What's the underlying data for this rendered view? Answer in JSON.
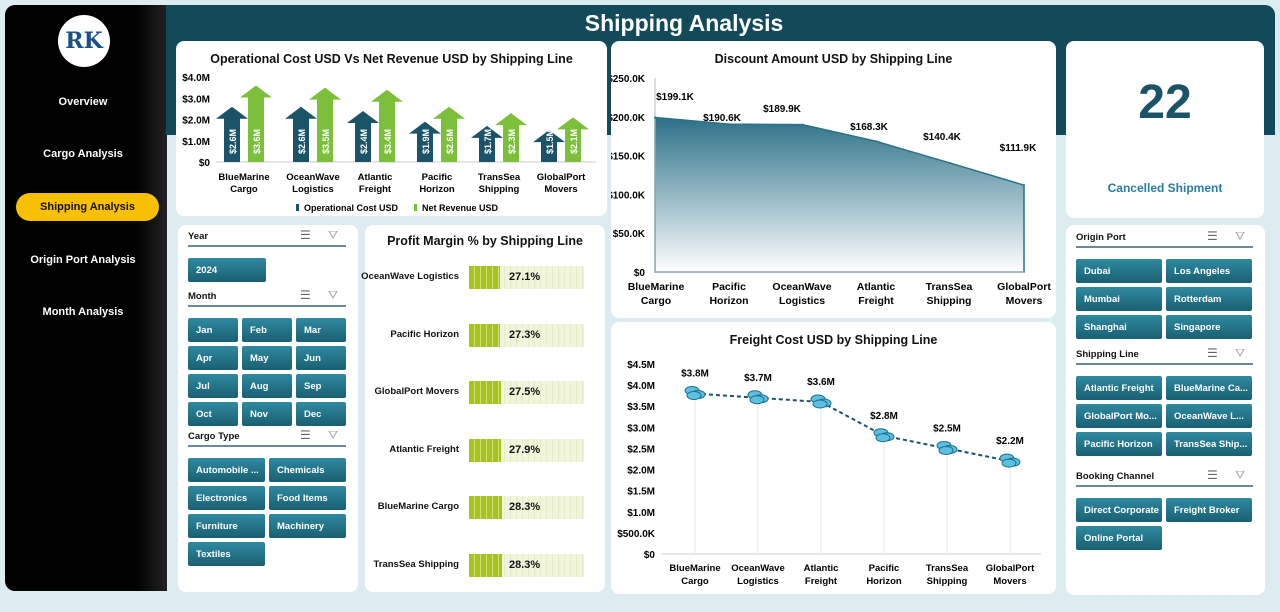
{
  "header": {
    "title": "Shipping Analysis"
  },
  "sidebar": {
    "logo": "RK",
    "items": [
      {
        "label": "Overview"
      },
      {
        "label": "Cargo Analysis"
      },
      {
        "label": "Shipping Analysis"
      },
      {
        "label": "Origin Port  Analysis"
      },
      {
        "label": "Month Analysis"
      }
    ],
    "active": 2
  },
  "kpi": {
    "value": "22",
    "label": "Cancelled Shipment"
  },
  "slicers_left": [
    {
      "title": "Year",
      "items": [
        "2024"
      ]
    },
    {
      "title": "Month",
      "items": [
        "Jan",
        "Feb",
        "Mar",
        "Apr",
        "May",
        "Jun",
        "Jul",
        "Aug",
        "Sep",
        "Oct",
        "Nov",
        "Dec"
      ]
    },
    {
      "title": "Cargo Type",
      "items": [
        "Automobile ...",
        "Chemicals",
        "Electronics",
        "Food Items",
        "Furniture",
        "Machinery",
        "Textiles"
      ]
    }
  ],
  "slicers_right": [
    {
      "title": "Origin Port",
      "items": [
        "Dubai",
        "Los Angeles",
        "Mumbai",
        "Rotterdam",
        "Shanghai",
        "Singapore"
      ]
    },
    {
      "title": "Shipping Line",
      "items": [
        "Atlantic Freight",
        "BlueMarine Ca...",
        "GlobalPort Mo...",
        "OceanWave L...",
        "Pacific Horizon",
        "TransSea Ship..."
      ]
    },
    {
      "title": "Booking Channel",
      "items": [
        "Direct Corporate",
        "Freight Broker",
        "Online Portal"
      ]
    }
  ],
  "colors": {
    "opcost": "#1b5468",
    "revenue": "#7cbf3a",
    "area": "#2c7188",
    "profit": "#a9c21c",
    "freight": "#2a88b0"
  },
  "chart_data": [
    {
      "type": "bar",
      "title": "Operational Cost USD Vs Net Revenue USD by Shipping Line",
      "categories": [
        "BlueMarine Cargo",
        "OceanWave Logistics",
        "Atlantic Freight",
        "Pacific Horizon",
        "TransSea Shipping",
        "GlobalPort Movers"
      ],
      "series": [
        {
          "name": "Operational Cost USD",
          "values": [
            2.6,
            2.6,
            2.4,
            1.9,
            1.7,
            1.5
          ],
          "labels": [
            "$2.6M",
            "$2.6M",
            "$2.4M",
            "$1.9M",
            "$1.7M",
            "$1.5M"
          ]
        },
        {
          "name": "Net Revenue USD",
          "values": [
            3.6,
            3.5,
            3.4,
            2.6,
            2.3,
            2.1
          ],
          "labels": [
            "$3.6M",
            "$3.5M",
            "$3.4M",
            "$2.6M",
            "$2.3M",
            "$2.1M"
          ]
        }
      ],
      "yticks": [
        "$0",
        "$1.0M",
        "$2.0M",
        "$3.0M",
        "$4.0M"
      ],
      "ylim": [
        0,
        4
      ],
      "legend": "bottom"
    },
    {
      "type": "area",
      "title": "Discount Amount USD by Shipping Line",
      "categories": [
        "BlueMarine Cargo",
        "Pacific Horizon",
        "OceanWave Logistics",
        "Atlantic Freight",
        "TransSea Shipping",
        "GlobalPort Movers"
      ],
      "values": [
        199.1,
        190.6,
        189.9,
        168.3,
        140.4,
        111.9
      ],
      "labels": [
        "$199.1K",
        "$190.6K",
        "$189.9K",
        "$168.3K",
        "$140.4K",
        "$111.9K"
      ],
      "yticks": [
        "$0",
        "$50.0K",
        "$100.0K",
        "$150.0K",
        "$200.0K",
        "$250.0K"
      ],
      "ylim": [
        0,
        250
      ]
    },
    {
      "type": "bar",
      "title": "Profit Margin % by Shipping Line",
      "categories": [
        "OceanWave Logistics",
        "Pacific Horizon",
        "GlobalPort Movers",
        "Atlantic Freight",
        "BlueMarine Cargo",
        "TransSea Shipping"
      ],
      "values": [
        27.1,
        27.3,
        27.5,
        27.9,
        28.3,
        28.3
      ],
      "labels": [
        "27.1%",
        "27.3%",
        "27.5%",
        "27.9%",
        "28.3%",
        "28.3%"
      ],
      "xlim": [
        0,
        100
      ]
    },
    {
      "type": "line",
      "title": "Freight Cost USD by Shipping Line",
      "categories": [
        "BlueMarine Cargo",
        "OceanWave Logistics",
        "Atlantic Freight",
        "Pacific Horizon",
        "TransSea Shipping",
        "GlobalPort Movers"
      ],
      "values": [
        3.8,
        3.7,
        3.6,
        2.8,
        2.5,
        2.2
      ],
      "labels": [
        "$3.8M",
        "$3.7M",
        "$3.6M",
        "$2.8M",
        "$2.5M",
        "$2.2M"
      ],
      "yticks": [
        "$0",
        "$500.0K",
        "$1.0M",
        "$1.5M",
        "$2.0M",
        "$2.5M",
        "$3.0M",
        "$3.5M",
        "$4.0M",
        "$4.5M"
      ],
      "ylim": [
        0,
        4.5
      ]
    }
  ]
}
